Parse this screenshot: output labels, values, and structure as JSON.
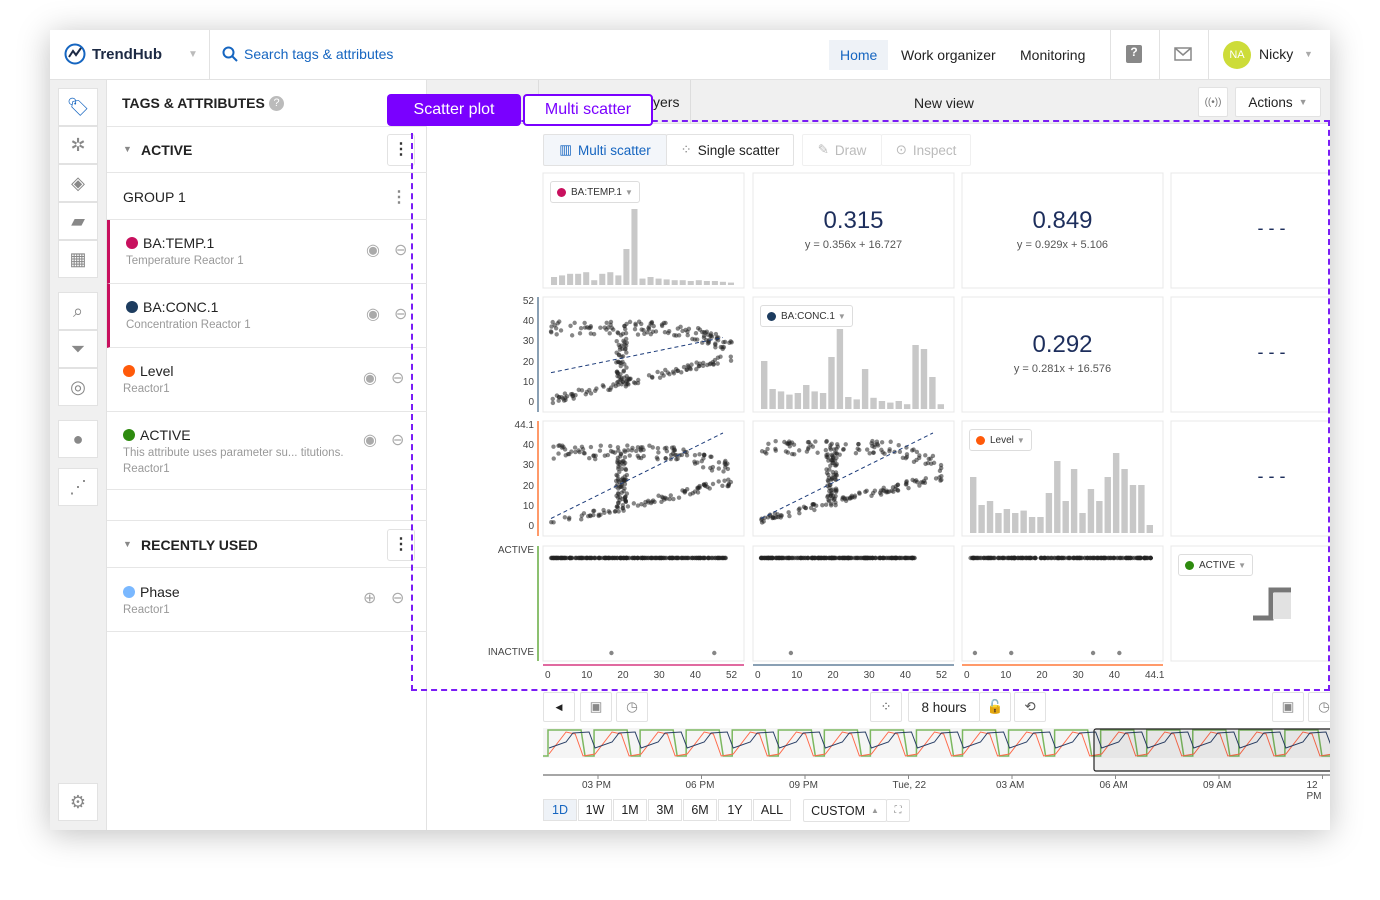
{
  "app": {
    "name": "TrendHub",
    "search_placeholder": "Search tags & attributes"
  },
  "nav": {
    "items": [
      "Home",
      "Work organizer",
      "Monitoring"
    ],
    "active": "Home",
    "user_initials": "NA",
    "user_name": "Nicky"
  },
  "tags_panel": {
    "title": "TAGS & ATTRIBUTES",
    "groups": [
      {
        "label": "ACTIVE"
      },
      {
        "label": "GROUP 1"
      }
    ],
    "items": [
      {
        "name": "BA:TEMP.1",
        "sub": "Temperature Reactor 1",
        "color": "#c8105e"
      },
      {
        "name": "BA:CONC.1",
        "sub": "Concentration Reactor 1",
        "color": "#1d3c5f"
      },
      {
        "name": "Level",
        "sub": "Reactor1",
        "color": "#ff5a0a"
      },
      {
        "name": "ACTIVE",
        "sub": "This attribute uses parameter su... titutions.",
        "sub2": "Reactor1",
        "color": "#2e8b0f"
      }
    ],
    "recent_label": "RECENTLY USED",
    "recent": [
      {
        "name": "Phase",
        "sub": "Reactor1",
        "color": "#7ab8ff"
      }
    ]
  },
  "annotation": {
    "scatter_plot": "Scatter plot",
    "multi_scatter": "Multi scatter"
  },
  "view": {
    "tab_partial": "yers",
    "title": "New view",
    "actions": "Actions"
  },
  "toolbar": {
    "multi_scatter": "Multi scatter",
    "single_scatter": "Single scatter",
    "draw": "Draw",
    "inspect": "Inspect",
    "accent": "#1565c0"
  },
  "matrix": {
    "tags": [
      "BA:TEMP.1",
      "BA:CONC.1",
      "Level",
      "ACTIVE"
    ],
    "correlations": [
      {
        "r": "0.315",
        "eq": "y = 0.356x + 16.727"
      },
      {
        "r": "0.849",
        "eq": "y = 0.929x + 5.106"
      },
      {
        "r": "0.292",
        "eq": "y = 0.281x + 16.576"
      }
    ],
    "empty": "- - -",
    "y_ticks_conc": [
      "52",
      "40",
      "30",
      "20",
      "10",
      "0"
    ],
    "y_ticks_level": [
      "44.1",
      "40",
      "30",
      "20",
      "10",
      "0"
    ],
    "y_ticks_active": [
      "ACTIVE",
      "INACTIVE"
    ],
    "x_ticks_temp": [
      "0",
      "10",
      "20",
      "30",
      "40",
      "52"
    ],
    "x_ticks_conc": [
      "0",
      "10",
      "20",
      "30",
      "40",
      "52"
    ],
    "x_ticks_level": [
      "0",
      "10",
      "20",
      "30",
      "40",
      "44.1"
    ],
    "hist_temp": [
      10,
      12,
      14,
      14,
      16,
      6,
      14,
      16,
      12,
      45,
      95,
      8,
      10,
      8,
      7,
      6,
      6,
      5,
      6,
      5,
      5,
      4,
      3
    ],
    "hist_conc": [
      60,
      25,
      22,
      18,
      20,
      30,
      22,
      20,
      65,
      100,
      15,
      12,
      50,
      14,
      10,
      8,
      10,
      6,
      80,
      75,
      40,
      6
    ],
    "hist_level": [
      70,
      35,
      40,
      25,
      30,
      25,
      28,
      20,
      20,
      50,
      90,
      40,
      80,
      25,
      55,
      40,
      70,
      100,
      80,
      60,
      60,
      10
    ],
    "colors": {
      "temp": "#e06aa0",
      "conc": "#8aa0b4",
      "level": "#ff9a6a",
      "active": "#8cc070"
    }
  },
  "timeline": {
    "duration": "8 hours",
    "labels": [
      "03 PM",
      "06 PM",
      "09 PM",
      "Tue, 22",
      "03 AM",
      "06 AM",
      "09 AM",
      "12 PM"
    ],
    "ranges": [
      "1D",
      "1W",
      "1M",
      "3M",
      "6M",
      "1Y",
      "ALL"
    ],
    "active_range": "1D",
    "custom": "CUSTOM"
  }
}
